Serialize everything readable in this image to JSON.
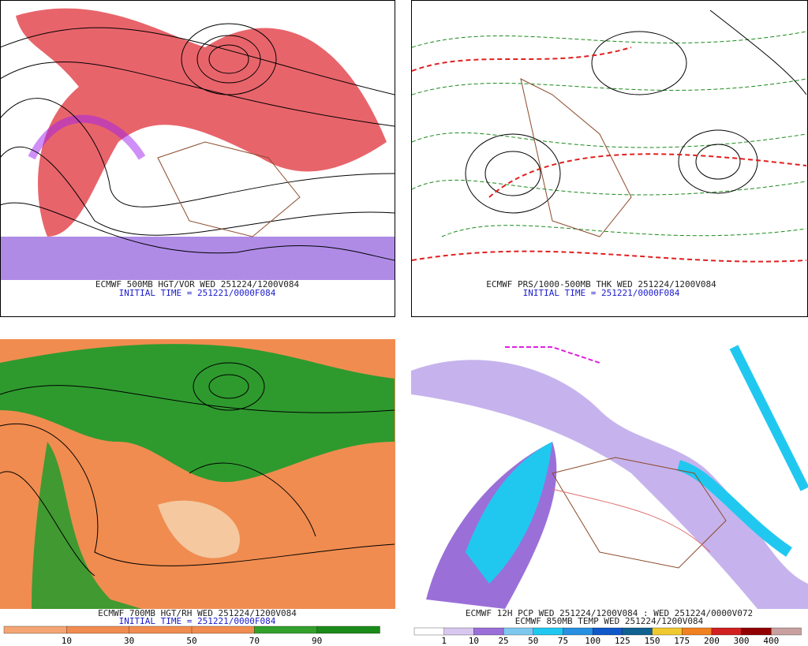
{
  "panels": [
    {
      "caption": "ECMWF 500MB HGT/VOR WED 251224/1200V084",
      "initial": "INITIAL TIME = 251221/0000F084"
    },
    {
      "caption": "ECMWF PRS/1000-500MB THK WED 251224/1200V084",
      "initial": "INITIAL TIME = 251221/0000F084"
    },
    {
      "caption": "ECMWF 700MB HGT/RH WED 251224/1200V084",
      "initial": "INITIAL TIME = 251221/0000F084",
      "colorbar": {
        "ticks": [
          10,
          30,
          50,
          70,
          90
        ],
        "colors": [
          "#f5a574",
          "#f08c50",
          "#f08c50",
          "#f08c50",
          "#33a02c",
          "#1a8a1a"
        ]
      }
    },
    {
      "caption": "ECMWF 12H PCP WED 251224/1200V084 : WED 251224/0000V072",
      "initial": "ECMWF 850MB TEMP WED 251224/1200V084",
      "colorbar": {
        "ticks": [
          1,
          10,
          25,
          50,
          75,
          100,
          125,
          150,
          175,
          200,
          300,
          400
        ],
        "colors": [
          "#ffffff",
          "#d8c8f0",
          "#9a70d8",
          "#7ec8f0",
          "#20c8f0",
          "#2890e0",
          "#1058c8",
          "#106090",
          "#f0c830",
          "#f08020",
          "#d02020",
          "#900000",
          "#c8a0a0"
        ]
      }
    }
  ]
}
